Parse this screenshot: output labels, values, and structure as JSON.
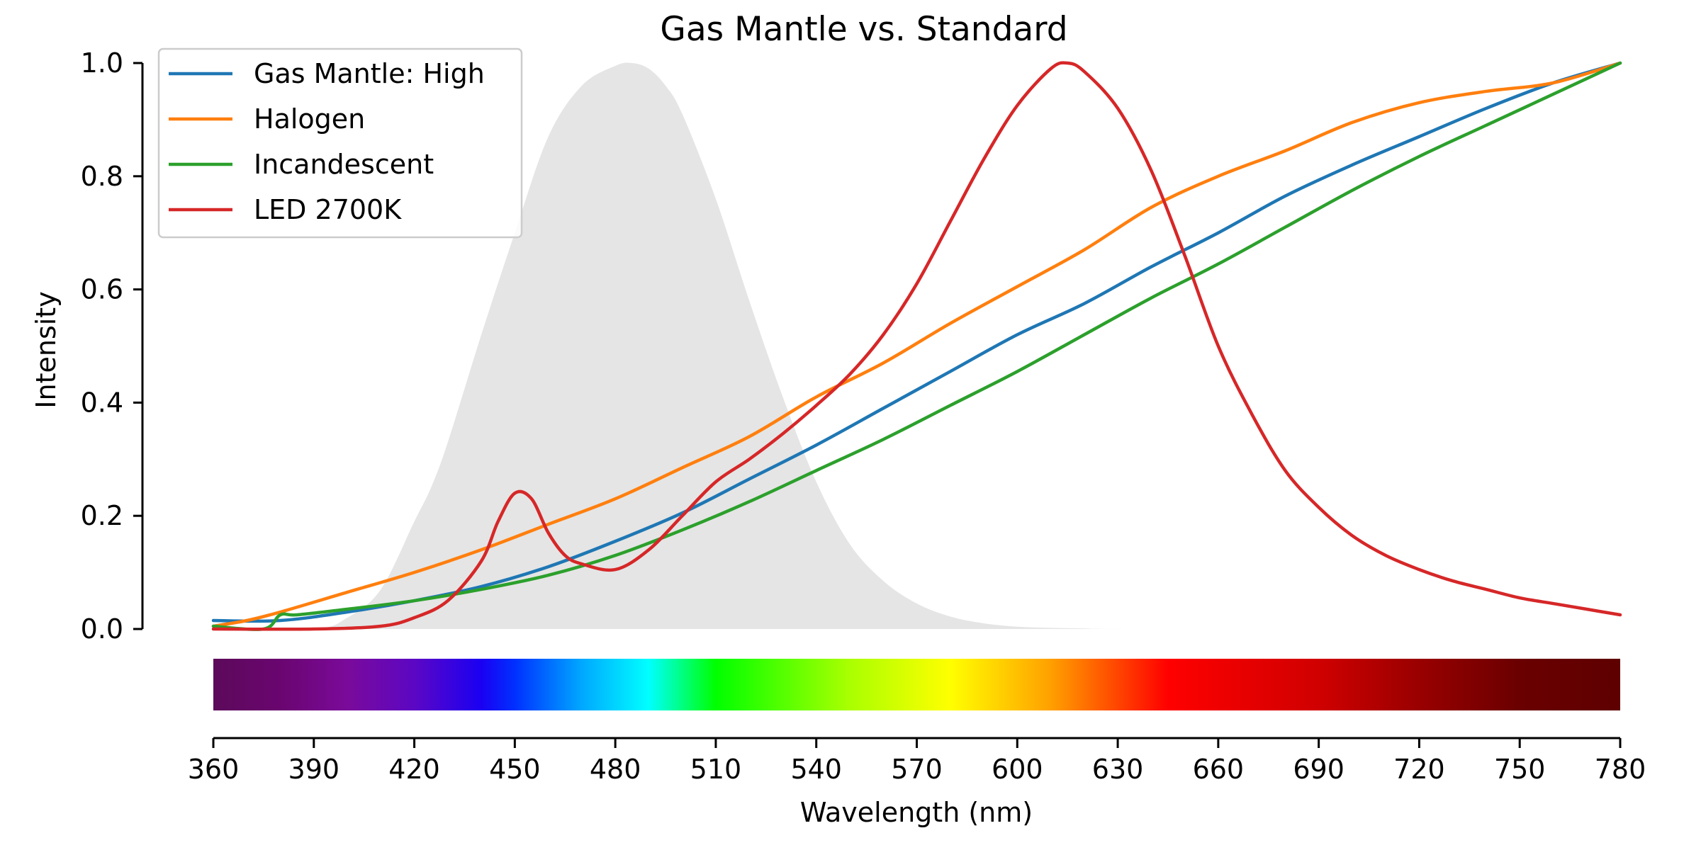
{
  "chart_data": {
    "type": "line",
    "title": "Gas Mantle vs. Standard",
    "xlabel": "Wavelength (nm)",
    "ylabel": "Intensity",
    "xlim": [
      360,
      780
    ],
    "ylim": [
      0,
      1
    ],
    "x_ticks": [
      360,
      390,
      420,
      450,
      480,
      510,
      540,
      570,
      600,
      630,
      660,
      690,
      720,
      750,
      780
    ],
    "y_ticks": [
      0.0,
      0.2,
      0.4,
      0.6,
      0.8,
      1.0
    ],
    "x_tick_labels": [
      "360",
      "390",
      "420",
      "450",
      "480",
      "510",
      "540",
      "570",
      "600",
      "630",
      "660",
      "690",
      "720",
      "750",
      "780"
    ],
    "y_tick_labels": [
      "0.0",
      "0.2",
      "0.4",
      "0.6",
      "0.8",
      "1.0"
    ],
    "legend": {
      "placement": "top-left"
    },
    "grid": false,
    "background_curve": {
      "description_color": "#e5e5e5",
      "x": [
        360,
        390,
        400,
        410,
        420,
        425,
        430,
        440,
        450,
        460,
        470,
        480,
        485,
        490,
        495,
        500,
        510,
        520,
        530,
        540,
        550,
        560,
        570,
        580,
        590,
        600,
        610,
        620,
        640,
        780
      ],
      "y": [
        0.0,
        0.0,
        0.02,
        0.07,
        0.19,
        0.25,
        0.33,
        0.52,
        0.7,
        0.87,
        0.96,
        0.995,
        1.0,
        0.99,
        0.96,
        0.91,
        0.76,
        0.58,
        0.41,
        0.26,
        0.15,
        0.085,
        0.045,
        0.022,
        0.01,
        0.004,
        0.002,
        0.001,
        0.0,
        0.0
      ]
    },
    "spectrum_bar": {
      "stops": [
        {
          "x": 360,
          "color": "#5c0a5a"
        },
        {
          "x": 380,
          "color": "#6a0570"
        },
        {
          "x": 400,
          "color": "#7a0a9a"
        },
        {
          "x": 420,
          "color": "#5c07c4"
        },
        {
          "x": 440,
          "color": "#1a00f2"
        },
        {
          "x": 450,
          "color": "#0030ff"
        },
        {
          "x": 470,
          "color": "#00a8ff"
        },
        {
          "x": 490,
          "color": "#00ffff"
        },
        {
          "x": 510,
          "color": "#00ff00"
        },
        {
          "x": 550,
          "color": "#aaff00"
        },
        {
          "x": 580,
          "color": "#ffff00"
        },
        {
          "x": 610,
          "color": "#ffa000"
        },
        {
          "x": 645,
          "color": "#ff0000"
        },
        {
          "x": 690,
          "color": "#d00000"
        },
        {
          "x": 720,
          "color": "#990000"
        },
        {
          "x": 750,
          "color": "#6a0000"
        },
        {
          "x": 780,
          "color": "#5e0000"
        }
      ]
    },
    "series": [
      {
        "name": "Gas Mantle: High",
        "color": "#1f77b4",
        "x": [
          360,
          380,
          400,
          420,
          440,
          460,
          480,
          500,
          520,
          540,
          560,
          580,
          600,
          620,
          640,
          660,
          680,
          700,
          720,
          740,
          760,
          780
        ],
        "y": [
          0.015,
          0.015,
          0.03,
          0.05,
          0.075,
          0.11,
          0.155,
          0.205,
          0.265,
          0.325,
          0.39,
          0.455,
          0.52,
          0.575,
          0.64,
          0.7,
          0.765,
          0.82,
          0.87,
          0.92,
          0.965,
          1.0
        ]
      },
      {
        "name": "Halogen",
        "color": "#ff7f0e",
        "x": [
          360,
          370,
          380,
          400,
          420,
          440,
          460,
          480,
          500,
          520,
          540,
          560,
          580,
          600,
          620,
          640,
          660,
          680,
          700,
          720,
          740,
          760,
          780
        ],
        "y": [
          0.005,
          0.015,
          0.03,
          0.065,
          0.1,
          0.14,
          0.185,
          0.23,
          0.285,
          0.34,
          0.41,
          0.47,
          0.54,
          0.605,
          0.67,
          0.745,
          0.8,
          0.845,
          0.895,
          0.93,
          0.95,
          0.965,
          1.0
        ]
      },
      {
        "name": "Incandescent",
        "color": "#2ca02c",
        "x": [
          360,
          375,
          380,
          385,
          400,
          420,
          440,
          460,
          480,
          500,
          520,
          540,
          560,
          580,
          600,
          620,
          640,
          660,
          680,
          700,
          720,
          740,
          760,
          780
        ],
        "y": [
          0.005,
          0.0,
          0.025,
          0.025,
          0.035,
          0.05,
          0.07,
          0.095,
          0.13,
          0.175,
          0.225,
          0.28,
          0.335,
          0.395,
          0.455,
          0.52,
          0.585,
          0.645,
          0.71,
          0.775,
          0.835,
          0.89,
          0.945,
          1.0
        ]
      },
      {
        "name": "LED 2700K",
        "color": "#d62728",
        "x": [
          360,
          390,
          410,
          420,
          430,
          440,
          445,
          450,
          455,
          460,
          465,
          470,
          480,
          490,
          500,
          510,
          520,
          530,
          540,
          550,
          560,
          570,
          580,
          590,
          600,
          610,
          615,
          620,
          630,
          640,
          650,
          660,
          670,
          680,
          690,
          700,
          710,
          720,
          730,
          740,
          750,
          760,
          770,
          780
        ],
        "y": [
          0.0,
          0.0,
          0.005,
          0.02,
          0.05,
          0.12,
          0.19,
          0.24,
          0.23,
          0.17,
          0.13,
          0.115,
          0.105,
          0.14,
          0.2,
          0.26,
          0.3,
          0.345,
          0.395,
          0.45,
          0.52,
          0.61,
          0.72,
          0.83,
          0.925,
          0.99,
          1.0,
          0.985,
          0.92,
          0.81,
          0.66,
          0.5,
          0.38,
          0.28,
          0.215,
          0.165,
          0.13,
          0.105,
          0.085,
          0.07,
          0.055,
          0.045,
          0.035,
          0.025
        ]
      }
    ]
  }
}
